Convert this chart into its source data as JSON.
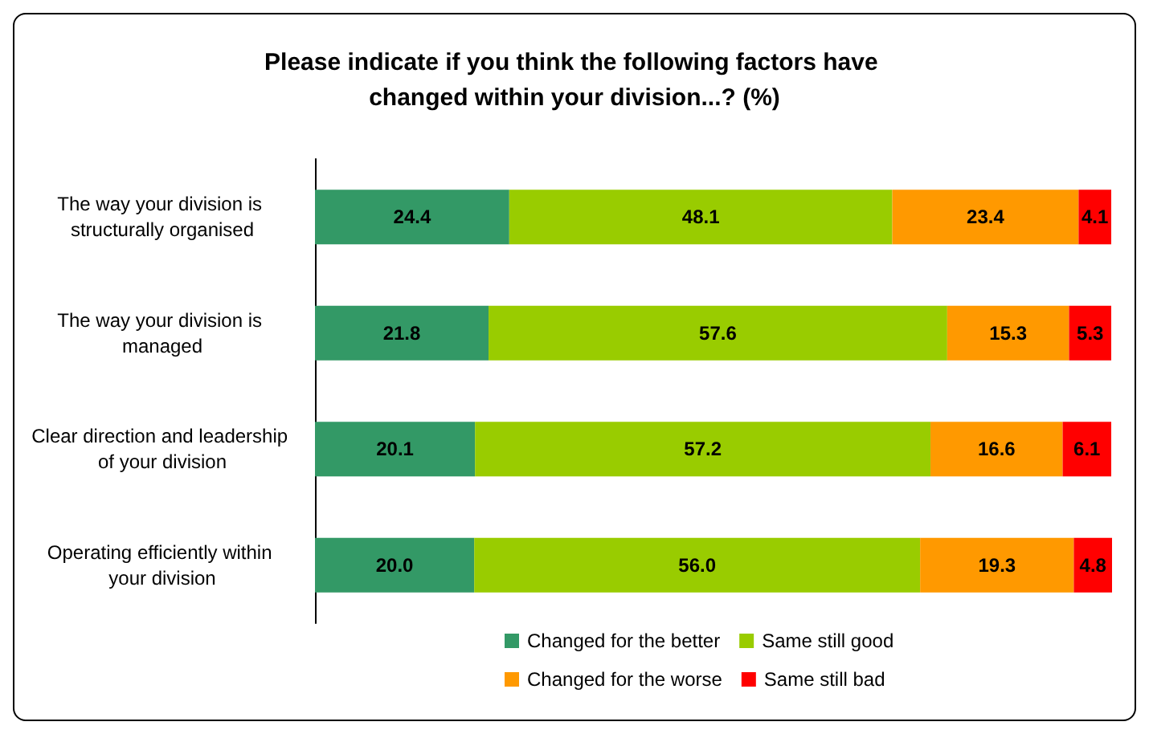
{
  "chart_data": {
    "type": "bar",
    "orientation": "horizontal",
    "stacked": true,
    "legend": "bottom",
    "title": "Please indicate if you think the following factors have changed within your division...? (%)",
    "categories": [
      "The way your division is structurally organised",
      "The way your division is managed",
      "Clear direction and leadership of your division",
      "Operating efficiently within your division"
    ],
    "series": [
      {
        "name": "Changed for the better",
        "color": "#339966",
        "values": [
          24.4,
          21.8,
          20.1,
          20.0
        ],
        "value_labels": [
          "24.4",
          "21.8",
          "20.1",
          "20.0"
        ]
      },
      {
        "name": "Same still good",
        "color": "#99cc00",
        "values": [
          48.1,
          57.6,
          57.2,
          56.0
        ],
        "value_labels": [
          "48.1",
          "57.6",
          "57.2",
          "56.0"
        ]
      },
      {
        "name": "Changed for the worse",
        "color": "#ff9900",
        "values": [
          23.4,
          15.3,
          16.6,
          19.3
        ],
        "value_labels": [
          "23.4",
          "15.3",
          "16.6",
          "19.3"
        ]
      },
      {
        "name": "Same still bad",
        "color": "#ff0000",
        "values": [
          4.1,
          5.3,
          6.1,
          4.8
        ],
        "value_labels": [
          "4.1",
          "5.3",
          "6.1",
          "4.8"
        ]
      }
    ]
  }
}
